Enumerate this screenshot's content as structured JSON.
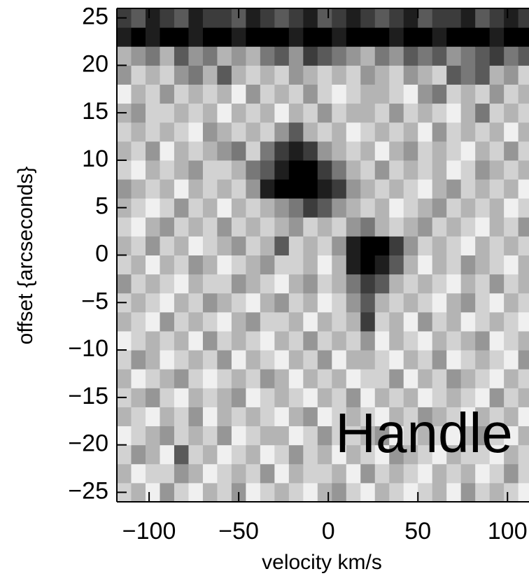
{
  "chart_data": {
    "type": "heatmap",
    "xlabel": "velocity km/s",
    "ylabel": "offset {arcseconds}",
    "annotation": "Handle",
    "colormap": "gray",
    "xlim": [
      -118,
      112
    ],
    "ylim": [
      -26,
      26
    ],
    "xticks": [
      {
        "value": -100,
        "label": "−100"
      },
      {
        "value": -50,
        "label": "−50"
      },
      0,
      50,
      100
    ],
    "yticks": [
      {
        "value": -25,
        "label": "−25"
      },
      {
        "value": -20,
        "label": "−20"
      },
      {
        "value": -15,
        "label": "−15"
      },
      {
        "value": -10,
        "label": "−10"
      },
      {
        "value": -5,
        "label": "−5"
      },
      0,
      5,
      10,
      15,
      20,
      25
    ],
    "x": [
      -114,
      -106,
      -98,
      -90,
      -82,
      -74,
      -66,
      -58,
      -50,
      -42,
      -34,
      -26,
      -18,
      -10,
      -2,
      6,
      14,
      22,
      30,
      38,
      46,
      54,
      62,
      70,
      78,
      86,
      94,
      102,
      110
    ],
    "y": [
      -25,
      -23,
      -21,
      -19,
      -17,
      -15,
      -13,
      -11,
      -9,
      -7,
      -5,
      -3,
      -1,
      1,
      3,
      5,
      7,
      9,
      11,
      13,
      15,
      17,
      19,
      21,
      23,
      25
    ],
    "z": [
      [
        7,
        6,
        8,
        5,
        7,
        8,
        6,
        7,
        5,
        8,
        7,
        6,
        7,
        8,
        6,
        5,
        7,
        8,
        6,
        7,
        8,
        7,
        6,
        8,
        5,
        7,
        6,
        7,
        8
      ],
      [
        6,
        8,
        7,
        7,
        5,
        6,
        8,
        7,
        6,
        7,
        5,
        8,
        6,
        7,
        7,
        6,
        8,
        5,
        7,
        6,
        7,
        8,
        6,
        7,
        6,
        8,
        7,
        5,
        7
      ],
      [
        7,
        5,
        6,
        8,
        3,
        7,
        6,
        8,
        7,
        6,
        8,
        7,
        5,
        7,
        6,
        8,
        6,
        7,
        8,
        5,
        6,
        7,
        8,
        6,
        7,
        7,
        8,
        6,
        7
      ],
      [
        8,
        7,
        6,
        5,
        7,
        6,
        7,
        5,
        8,
        7,
        6,
        6,
        8,
        7,
        5,
        7,
        7,
        6,
        5,
        8,
        7,
        6,
        7,
        8,
        6,
        5,
        7,
        8,
        6
      ],
      [
        6,
        7,
        8,
        6,
        7,
        5,
        8,
        6,
        7,
        6,
        7,
        8,
        6,
        5,
        8,
        7,
        6,
        7,
        8,
        6,
        7,
        5,
        6,
        7,
        8,
        6,
        7,
        6,
        8
      ],
      [
        7,
        6,
        5,
        7,
        8,
        6,
        7,
        6,
        5,
        8,
        7,
        6,
        7,
        8,
        6,
        7,
        5,
        8,
        6,
        7,
        6,
        8,
        7,
        6,
        7,
        8,
        5,
        7,
        6
      ],
      [
        6,
        8,
        7,
        6,
        5,
        7,
        8,
        7,
        6,
        7,
        5,
        6,
        8,
        6,
        7,
        6,
        8,
        7,
        7,
        5,
        8,
        6,
        7,
        5,
        6,
        7,
        8,
        6,
        7
      ],
      [
        7,
        5,
        6,
        8,
        7,
        6,
        7,
        5,
        8,
        6,
        7,
        8,
        6,
        7,
        5,
        8,
        6,
        6,
        7,
        8,
        6,
        7,
        5,
        8,
        7,
        6,
        7,
        8,
        5
      ],
      [
        8,
        7,
        6,
        7,
        6,
        8,
        5,
        7,
        6,
        7,
        8,
        6,
        7,
        5,
        7,
        6,
        7,
        5,
        8,
        6,
        7,
        8,
        6,
        7,
        6,
        5,
        8,
        7,
        6
      ],
      [
        6,
        7,
        8,
        5,
        7,
        6,
        7,
        8,
        6,
        5,
        7,
        7,
        6,
        8,
        6,
        7,
        6,
        2,
        7,
        6,
        8,
        5,
        7,
        6,
        8,
        7,
        6,
        7,
        8
      ],
      [
        7,
        6,
        7,
        8,
        6,
        7,
        5,
        6,
        7,
        8,
        6,
        5,
        7,
        6,
        8,
        7,
        5,
        3,
        6,
        7,
        6,
        7,
        8,
        6,
        5,
        7,
        8,
        6,
        7
      ],
      [
        5,
        7,
        6,
        7,
        8,
        6,
        7,
        7,
        5,
        6,
        7,
        8,
        6,
        5,
        7,
        6,
        4,
        2,
        3,
        6,
        7,
        6,
        7,
        8,
        6,
        7,
        5,
        7,
        6
      ],
      [
        7,
        6,
        8,
        6,
        7,
        5,
        6,
        8,
        7,
        6,
        5,
        7,
        7,
        6,
        8,
        6,
        1,
        0,
        1,
        3,
        6,
        8,
        6,
        7,
        5,
        6,
        7,
        8,
        6
      ],
      [
        6,
        7,
        5,
        7,
        6,
        8,
        7,
        6,
        5,
        7,
        6,
        3,
        7,
        6,
        7,
        5,
        1,
        0,
        0,
        2,
        5,
        7,
        6,
        7,
        8,
        6,
        7,
        6,
        7
      ],
      [
        7,
        8,
        6,
        5,
        7,
        6,
        7,
        5,
        7,
        6,
        7,
        6,
        5,
        7,
        6,
        7,
        5,
        4,
        6,
        7,
        6,
        5,
        7,
        6,
        7,
        8,
        6,
        7,
        5
      ],
      [
        6,
        7,
        8,
        7,
        5,
        7,
        6,
        8,
        6,
        7,
        6,
        5,
        4,
        2,
        3,
        5,
        6,
        7,
        6,
        8,
        7,
        6,
        5,
        7,
        6,
        7,
        6,
        8,
        7
      ],
      [
        5,
        6,
        7,
        6,
        8,
        6,
        7,
        6,
        7,
        5,
        1,
        0,
        0,
        0,
        1,
        2,
        5,
        6,
        7,
        6,
        7,
        8,
        6,
        5,
        7,
        6,
        7,
        6,
        8
      ],
      [
        7,
        8,
        6,
        7,
        6,
        5,
        7,
        7,
        6,
        4,
        3,
        1,
        0,
        0,
        2,
        4,
        6,
        7,
        5,
        7,
        6,
        7,
        6,
        8,
        7,
        5,
        6,
        7,
        6
      ],
      [
        6,
        7,
        5,
        8,
        6,
        7,
        6,
        5,
        4,
        7,
        4,
        2,
        1,
        2,
        5,
        6,
        7,
        6,
        8,
        6,
        5,
        7,
        6,
        7,
        8,
        6,
        7,
        5,
        7
      ],
      [
        7,
        6,
        7,
        6,
        7,
        8,
        5,
        6,
        7,
        6,
        7,
        5,
        3,
        6,
        7,
        6,
        8,
        7,
        6,
        7,
        6,
        8,
        5,
        7,
        6,
        7,
        6,
        8,
        6
      ],
      [
        6,
        5,
        7,
        7,
        6,
        7,
        6,
        8,
        6,
        7,
        6,
        8,
        6,
        7,
        5,
        7,
        6,
        6,
        7,
        5,
        7,
        6,
        7,
        8,
        6,
        4,
        7,
        6,
        7
      ],
      [
        8,
        6,
        7,
        5,
        7,
        6,
        7,
        6,
        8,
        5,
        7,
        6,
        7,
        5,
        7,
        8,
        7,
        6,
        6,
        7,
        8,
        5,
        4,
        7,
        6,
        7,
        5,
        7,
        6
      ],
      [
        5,
        7,
        6,
        7,
        5,
        4,
        6,
        3,
        6,
        7,
        6,
        7,
        5,
        6,
        7,
        6,
        7,
        5,
        6,
        7,
        5,
        6,
        7,
        3,
        4,
        3,
        6,
        5,
        7
      ],
      [
        6,
        5,
        4,
        6,
        3,
        5,
        4,
        6,
        5,
        6,
        4,
        3,
        5,
        2,
        3,
        4,
        5,
        6,
        4,
        5,
        3,
        4,
        3,
        5,
        4,
        3,
        2,
        4,
        3
      ],
      [
        1,
        0,
        1,
        0,
        0,
        1,
        0,
        0,
        1,
        0,
        0,
        0,
        1,
        0,
        0,
        1,
        0,
        0,
        0,
        1,
        0,
        0,
        1,
        0,
        0,
        0,
        1,
        0,
        0
      ],
      [
        2,
        3,
        1,
        2,
        3,
        1,
        2,
        2,
        3,
        1,
        2,
        3,
        2,
        1,
        3,
        2,
        1,
        2,
        3,
        2,
        1,
        3,
        2,
        2,
        1,
        3,
        2,
        1,
        2
      ]
    ]
  }
}
